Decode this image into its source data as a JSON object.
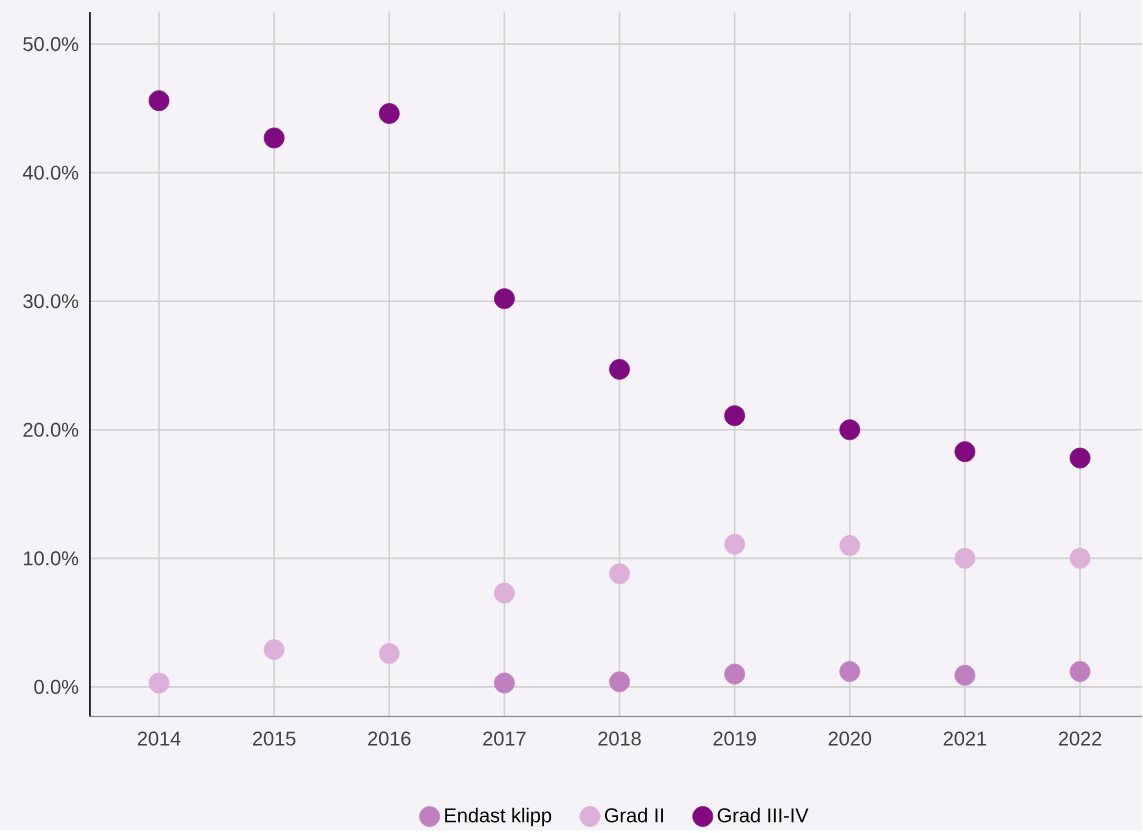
{
  "chart_data": {
    "type": "scatter",
    "categories": [
      "2014",
      "2015",
      "2016",
      "2017",
      "2018",
      "2019",
      "2020",
      "2021",
      "2022"
    ],
    "series": [
      {
        "name": "Endast klipp",
        "color": "#c07fbf",
        "values": [
          null,
          null,
          null,
          0.3,
          0.4,
          1.0,
          1.2,
          0.9,
          1.2
        ]
      },
      {
        "name": "Grad II",
        "color": "#dcb0d8",
        "values": [
          0.3,
          2.9,
          2.6,
          7.3,
          8.8,
          11.1,
          11.0,
          10.0,
          10.0
        ]
      },
      {
        "name": "Grad III-IV",
        "color": "#800a7f",
        "values": [
          45.6,
          42.7,
          44.6,
          30.2,
          24.7,
          21.1,
          20.0,
          18.3,
          17.8
        ]
      }
    ],
    "ylim": [
      -2.3,
      52.5
    ],
    "yticks": [
      {
        "value": 0,
        "label": "0.0%"
      },
      {
        "value": 10,
        "label": "10.0%"
      },
      {
        "value": 20,
        "label": "20.0%"
      },
      {
        "value": 30,
        "label": "30.0%"
      },
      {
        "value": 40,
        "label": "40.0%"
      },
      {
        "value": 50,
        "label": "50.0%"
      }
    ],
    "grid": true,
    "legend": "bottom",
    "marker": "circle"
  }
}
